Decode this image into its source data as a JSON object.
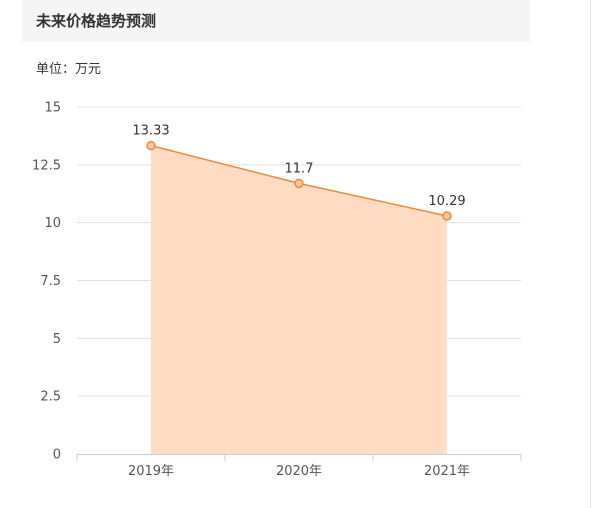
{
  "header": {
    "title": "未来价格趋势预测"
  },
  "unit": {
    "label": "单位：",
    "value": "万元"
  },
  "colors": {
    "line": "#f0883a",
    "area": "#ffdcc3",
    "point_fill": "#ffc9a0",
    "grid": "#e0e0e0",
    "axis": "#c7ccd6"
  },
  "chart_data": {
    "type": "area",
    "categories": [
      "2019年",
      "2020年",
      "2021年"
    ],
    "values": [
      13.33,
      11.7,
      10.29
    ],
    "data_labels": [
      "13.33",
      "11.7",
      "10.29"
    ],
    "y_ticks": [
      "0",
      "2.5",
      "5",
      "7.5",
      "10",
      "12.5",
      "15"
    ],
    "y_tick_values": [
      0,
      2.5,
      5,
      7.5,
      10,
      12.5,
      15
    ],
    "ylim": [
      0,
      15
    ],
    "grid": true,
    "legend": "none"
  }
}
